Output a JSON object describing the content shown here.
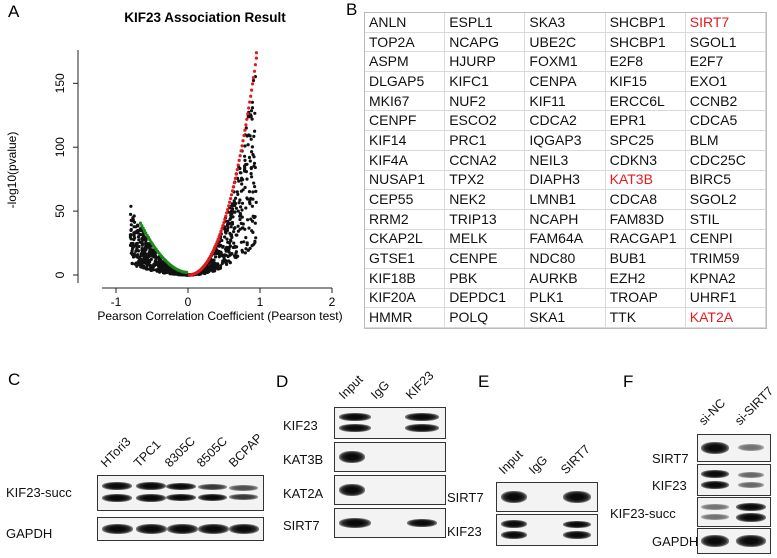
{
  "panel_labels": {
    "a": "A",
    "b": "B",
    "c": "C",
    "d": "D",
    "e": "E",
    "f": "F"
  },
  "panelA": {
    "title": "KIF23 Association Result",
    "xlabel": "Pearson Correlation Coefficient (Pearson test)",
    "ylabel": "-log10(pvalue)",
    "xticks": [
      "-1",
      "0",
      "1",
      "2"
    ],
    "yticks": [
      "0",
      "50",
      "100",
      "150"
    ],
    "colors": {
      "positive": "#e31a1c",
      "negative": "#1a8a1a",
      "other": "#111111"
    }
  },
  "chart_data": {
    "type": "scatter",
    "title": "KIF23 Association Result",
    "xlabel": "Pearson Correlation Coefficient (Pearson test)",
    "ylabel": "-log10(pvalue)",
    "xlim": [
      -1.5,
      2.0
    ],
    "ylim": [
      0,
      180
    ],
    "grid": false,
    "series": [
      {
        "values_desc": "",
        "x": [
          0.05,
          0.2,
          0.35,
          0.5,
          0.6,
          0.7,
          0.75,
          0.8,
          0.85,
          0.88,
          0.9,
          0.95
        ],
        "y": [
          2,
          8,
          18,
          35,
          55,
          75,
          88,
          105,
          125,
          140,
          155,
          174
        ]
      },
      {
        "x": [
          -0.1,
          -0.2,
          -0.3,
          -0.4,
          -0.5,
          -0.55,
          -0.6,
          -0.65
        ],
        "y": [
          1,
          4,
          10,
          18,
          28,
          34,
          42,
          50
        ]
      }
    ]
  },
  "panelB": {
    "genes": [
      [
        "ANLN",
        "ESPL1",
        "SKA3",
        "SHCBP1",
        "SIRT7"
      ],
      [
        "TOP2A",
        "NCAPG",
        "UBE2C",
        "SHCBP1",
        "SGOL1"
      ],
      [
        "ASPM",
        "HJURP",
        "FOXM1",
        "E2F8",
        "E2F7"
      ],
      [
        "DLGAP5",
        "KIFC1",
        "CENPA",
        "KIF15",
        "EXO1"
      ],
      [
        "MKI67",
        "NUF2",
        "KIF11",
        "ERCC6L",
        "CCNB2"
      ],
      [
        "CENPF",
        "ESCO2",
        "CDCA2",
        "EPR1",
        "CDCA5"
      ],
      [
        "KIF14",
        "PRC1",
        "IQGAP3",
        "SPC25",
        "BLM"
      ],
      [
        "KIF4A",
        "CCNA2",
        "NEIL3",
        "CDKN3",
        "CDC25C"
      ],
      [
        "NUSAP1",
        "TPX2",
        "DIAPH3",
        "KAT3B",
        "BIRC5"
      ],
      [
        "CEP55",
        "NEK2",
        "LMNB1",
        "CDCA8",
        "SGOL2"
      ],
      [
        "RRM2",
        "TRIP13",
        "NCAPH",
        "FAM83D",
        "STIL"
      ],
      [
        "CKAP2L",
        "MELK",
        "FAM64A",
        "RACGAP1",
        "CENPI"
      ],
      [
        "GTSE1",
        "CENPE",
        "NDC80",
        "BUB1",
        "TRIM59"
      ],
      [
        "KIF18B",
        "PBK",
        "AURKB",
        "EZH2",
        "KPNA2"
      ],
      [
        "KIF20A",
        "DEPDC1",
        "PLK1",
        "TROAP",
        "UHRF1"
      ],
      [
        "HMMR",
        "POLQ",
        "SKA1",
        "TTK",
        "KAT2A"
      ]
    ],
    "highlighted": [
      "SIRT7",
      "KAT3B",
      "KAT2A"
    ],
    "highlight_color": "#e8191f"
  },
  "panelC": {
    "columns": [
      "HTori3",
      "TPC1",
      "8305C",
      "8505C",
      "BCPAP"
    ],
    "rows": [
      "KIF23-succ",
      "GAPDH"
    ]
  },
  "panelD": {
    "columns": [
      "Input",
      "IgG",
      "KIF23"
    ],
    "rows": [
      "KIF23",
      "KAT3B",
      "KAT2A",
      "SIRT7"
    ]
  },
  "panelE": {
    "columns": [
      "Input",
      "IgG",
      "SIRT7"
    ],
    "rows": [
      "SIRT7",
      "KIF23"
    ]
  },
  "panelF": {
    "columns": [
      "si-NC",
      "si-SIRT7"
    ],
    "rows": [
      "SIRT7",
      "KIF23",
      "KIF23-succ",
      "GAPDH"
    ]
  }
}
